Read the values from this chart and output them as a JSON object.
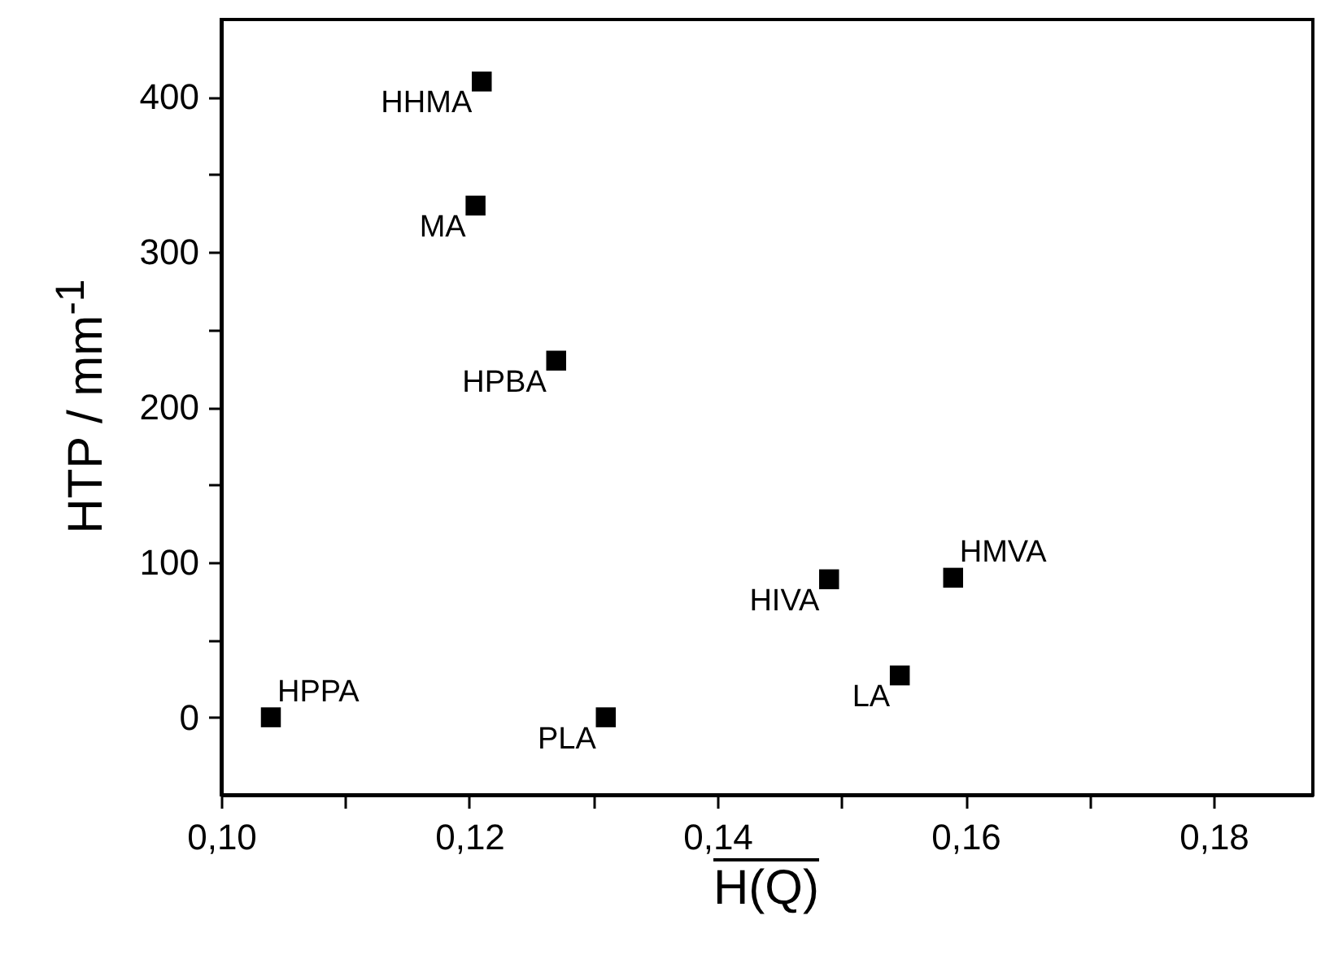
{
  "chart_data": {
    "type": "scatter",
    "xlabel": "H(Q)",
    "ylabel": "HTP / mm$^{-1}$",
    "x": [
      0.121,
      0.1205,
      0.127,
      0.104,
      0.131,
      0.149,
      0.1547,
      0.159
    ],
    "values": [
      410,
      330,
      230,
      0,
      0,
      89,
      27,
      90
    ],
    "color": "#000000",
    "marker": "square",
    "xlim": [
      0.1,
      0.188
    ],
    "xticks": [
      {
        "value": 0.1,
        "label": "0,10"
      },
      {
        "value": 0.11,
        "label": null
      },
      {
        "value": 0.12,
        "label": "0,12"
      },
      {
        "value": 0.13,
        "label": null
      },
      {
        "value": 0.14,
        "label": "0,14"
      },
      {
        "value": 0.15,
        "label": null
      },
      {
        "value": 0.16,
        "label": "0,16"
      },
      {
        "value": 0.17,
        "label": null
      },
      {
        "value": 0.18,
        "label": "0,18"
      }
    ],
    "ylim": [
      -50,
      450
    ],
    "yticks": [
      0,
      {
        "value": 50,
        "label": null
      },
      100,
      {
        "value": 150,
        "label": null
      },
      200,
      {
        "value": 250,
        "label": null
      },
      300,
      {
        "value": 350,
        "label": null
      },
      400
    ],
    "annotations": [
      {
        "text": "HHMA",
        "x": 0.121,
        "y": 410
      },
      {
        "text": "MA",
        "x": 0.1205,
        "y": 330
      },
      {
        "text": "HPBA",
        "x": 0.127,
        "y": 230
      },
      {
        "text": "HPPA",
        "x": 0.104,
        "y": 0
      },
      {
        "text": "PLA",
        "x": 0.131,
        "y": 0
      },
      {
        "text": "HIVA",
        "x": 0.149,
        "y": 89
      },
      {
        "text": "LA",
        "x": 0.1547,
        "y": 27
      },
      {
        "text": "HMVA",
        "x": 0.159,
        "y": 90
      }
    ]
  }
}
